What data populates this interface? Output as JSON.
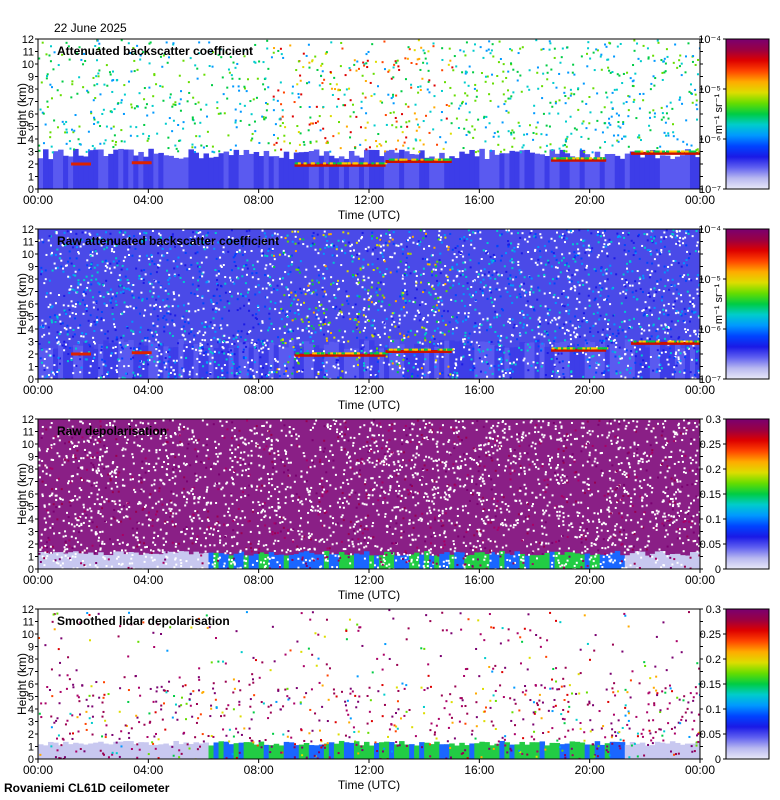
{
  "header": {
    "date": "22 June 2025"
  },
  "footer": {
    "station": "Rovaniemi CL61D ceilometer"
  },
  "chart_data": [
    {
      "type": "heatmap",
      "title": "Attenuated backscatter coefficient",
      "xlabel": "Time (UTC)",
      "ylabel": "Height (km)",
      "xticks": [
        "00:00",
        "04:00",
        "08:00",
        "12:00",
        "16:00",
        "20:00",
        "00:00"
      ],
      "xlim_hours": [
        0,
        24
      ],
      "ylim": [
        0,
        12
      ],
      "yticks": [
        0,
        1,
        2,
        3,
        4,
        5,
        6,
        7,
        8,
        9,
        10,
        11,
        12
      ],
      "colorbar": {
        "scale": "log",
        "label": "m⁻¹ sr⁻¹",
        "ticks": [
          "10⁻⁷",
          "10⁻⁶",
          "10⁻⁵",
          "10⁻⁴"
        ]
      },
      "features": {
        "cloud_base_km": [
          [
            1.5,
            2.0
          ],
          [
            3.7,
            2.1
          ],
          [
            9.6,
            1.8
          ],
          [
            12,
            2.2
          ],
          [
            14.5,
            2.2
          ],
          [
            19.5,
            2.3
          ],
          [
            22.5,
            2.8
          ],
          [
            24,
            2.9
          ]
        ],
        "boundary_layer_top_km": 2.8,
        "noise_masked": true
      }
    },
    {
      "type": "heatmap",
      "title": "Raw attenuated backscatter coefficient",
      "xlabel": "Time (UTC)",
      "ylabel": "Height (km)",
      "xticks": [
        "00:00",
        "04:00",
        "08:00",
        "12:00",
        "16:00",
        "20:00",
        "00:00"
      ],
      "xlim_hours": [
        0,
        24
      ],
      "ylim": [
        0,
        12
      ],
      "yticks": [
        0,
        1,
        2,
        3,
        4,
        5,
        6,
        7,
        8,
        9,
        10,
        11,
        12
      ],
      "colorbar": {
        "scale": "log",
        "label": "m⁻¹ sr⁻¹",
        "ticks": [
          "10⁻⁷",
          "10⁻⁶",
          "10⁻⁵",
          "10⁻⁴"
        ]
      },
      "features": {
        "cloud_base_km": [
          [
            1.5,
            2.0
          ],
          [
            3.7,
            2.1
          ],
          [
            9.6,
            1.8
          ],
          [
            12,
            2.2
          ],
          [
            14.5,
            2.2
          ],
          [
            19.5,
            2.3
          ],
          [
            22.5,
            2.8
          ],
          [
            24,
            2.9
          ]
        ],
        "boundary_layer_top_km": 2.8,
        "noise_masked": false
      }
    },
    {
      "type": "heatmap",
      "title": "Raw depolarisation",
      "xlabel": "Time (UTC)",
      "ylabel": "Height (km)",
      "xticks": [
        "00:00",
        "04:00",
        "08:00",
        "12:00",
        "16:00",
        "20:00",
        "00:00"
      ],
      "xlim_hours": [
        0,
        24
      ],
      "ylim": [
        0,
        12
      ],
      "yticks": [
        0,
        1,
        2,
        3,
        4,
        5,
        6,
        7,
        8,
        9,
        10,
        11,
        12
      ],
      "colorbar": {
        "scale": "linear",
        "label": "",
        "ticks": [
          "0",
          "0.05",
          "0.1",
          "0.15",
          "0.2",
          "0.25",
          "0.3"
        ]
      },
      "features": {
        "boundary_layer_top_km": 2.8,
        "noise_masked": false
      }
    },
    {
      "type": "heatmap",
      "title": "Smoothed lidar depolarisation",
      "xlabel": "Time (UTC)",
      "ylabel": "Height (km)",
      "xticks": [
        "00:00",
        "04:00",
        "08:00",
        "12:00",
        "16:00",
        "20:00",
        "00:00"
      ],
      "xlim_hours": [
        0,
        24
      ],
      "ylim": [
        0,
        12
      ],
      "yticks": [
        0,
        1,
        2,
        3,
        4,
        5,
        6,
        7,
        8,
        9,
        10,
        11,
        12
      ],
      "colorbar": {
        "scale": "linear",
        "label": "",
        "ticks": [
          "0",
          "0.05",
          "0.1",
          "0.15",
          "0.2",
          "0.25",
          "0.3"
        ]
      },
      "features": {
        "boundary_layer_top_km": 2.8,
        "noise_masked": true
      }
    }
  ]
}
